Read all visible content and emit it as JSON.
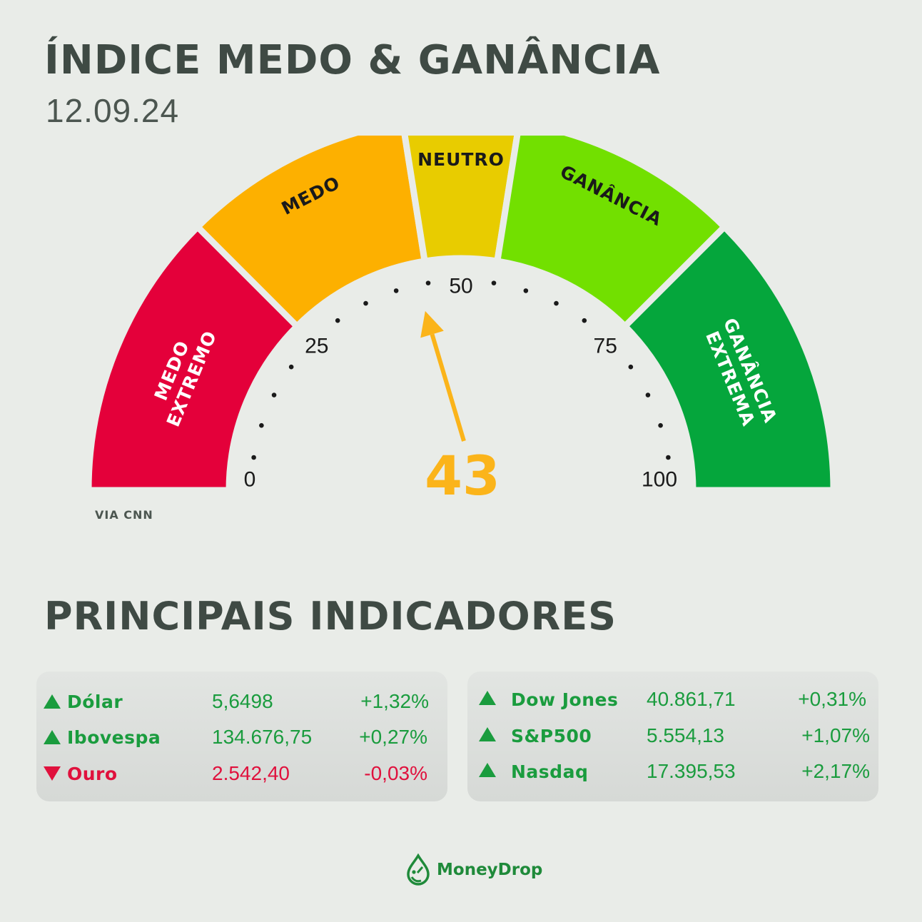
{
  "header": {
    "title": "ÍNDICE MEDO & GANÂNCIA",
    "date": "12.09.24"
  },
  "chart_data": {
    "type": "gauge",
    "value": 43,
    "range": [
      0,
      100
    ],
    "ticks": [
      0,
      25,
      50,
      75,
      100
    ],
    "zones": [
      {
        "label_lines": [
          "MEDO",
          "EXTREMO"
        ],
        "from": 0,
        "to": 25,
        "color": "#e4003a",
        "text_color": "#ffffff"
      },
      {
        "label_lines": [
          "MEDO"
        ],
        "from": 25,
        "to": 45,
        "color": "#fdb000",
        "text_color": "#1a1a1a"
      },
      {
        "label_lines": [
          "NEUTRO"
        ],
        "from": 45,
        "to": 55,
        "color": "#e8cc00",
        "text_color": "#1a1a1a"
      },
      {
        "label_lines": [
          "GANÂNCIA"
        ],
        "from": 55,
        "to": 75,
        "color": "#72e000",
        "text_color": "#1a1a1a"
      },
      {
        "label_lines": [
          "GANÂNCIA",
          "EXTREMA"
        ],
        "from": 75,
        "to": 100,
        "color": "#05a63c",
        "text_color": "#ffffff"
      }
    ],
    "pointer_color": "#fbb41a"
  },
  "source": "VIA CNN",
  "indicators": {
    "title": "PRINCIPAIS INDICADORES",
    "left": [
      {
        "name": "Dólar",
        "value": "5,6498",
        "change": "+1,32%",
        "trend": "up"
      },
      {
        "name": "Ibovespa",
        "value": "134.676,75",
        "change": "+0,27%",
        "trend": "up"
      },
      {
        "name": "Ouro",
        "value": "2.542,40",
        "change": "-0,03%",
        "trend": "down"
      }
    ],
    "right": [
      {
        "name": "Dow Jones",
        "value": "40.861,71",
        "change": "+0,31%",
        "trend": "up"
      },
      {
        "name": "S&P500",
        "value": "5.554,13",
        "change": "+1,07%",
        "trend": "up"
      },
      {
        "name": "Nasdaq",
        "value": "17.395,53",
        "change": "+2,17%",
        "trend": "up"
      }
    ]
  },
  "brand": {
    "name": "MoneyDrop",
    "icon": "water-drop-icon"
  }
}
